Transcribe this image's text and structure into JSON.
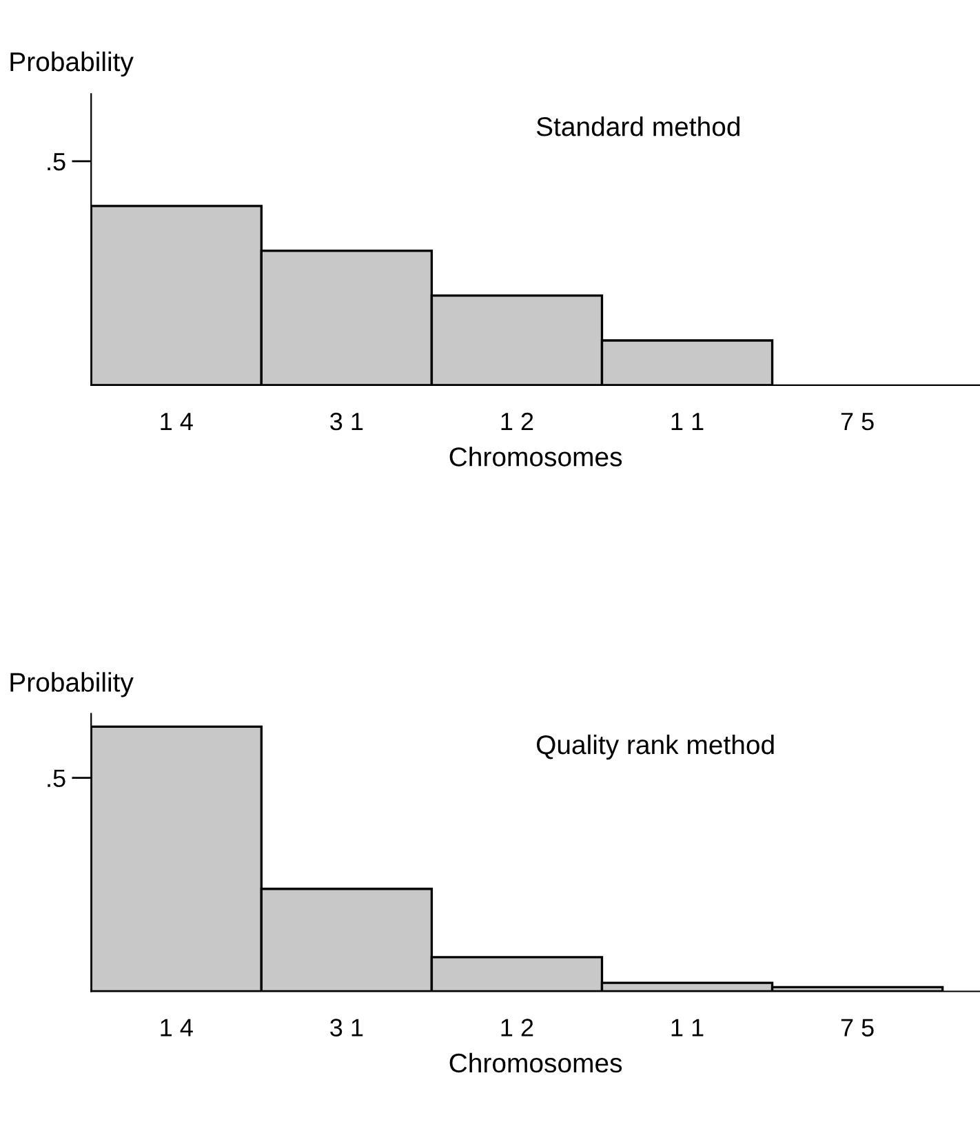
{
  "chart_data": [
    {
      "type": "bar",
      "title": "Standard method",
      "xlabel": "Chromosomes",
      "ylabel": "Probability",
      "categories": [
        "1 4",
        "3 1",
        "1 2",
        "1 1",
        "7 5"
      ],
      "values": [
        0.4,
        0.3,
        0.2,
        0.1,
        0
      ],
      "color": "#c8c8c8",
      "ylim": [
        0,
        0.65
      ],
      "yticks": [
        {
          "value": 0.5,
          "label": ".5"
        }
      ],
      "grid": false,
      "legend": false
    },
    {
      "type": "bar",
      "title": "Quality rank method",
      "xlabel": "Chromosomes",
      "ylabel": "Probability",
      "categories": [
        "1 4",
        "3 1",
        "1 2",
        "1 1",
        "7 5"
      ],
      "values": [
        0.62,
        0.24,
        0.08,
        0.02,
        0.01
      ],
      "color": "#c8c8c8",
      "ylim": [
        0,
        0.65
      ],
      "yticks": [
        {
          "value": 0.5,
          "label": ".5"
        }
      ],
      "grid": false,
      "legend": false
    }
  ]
}
